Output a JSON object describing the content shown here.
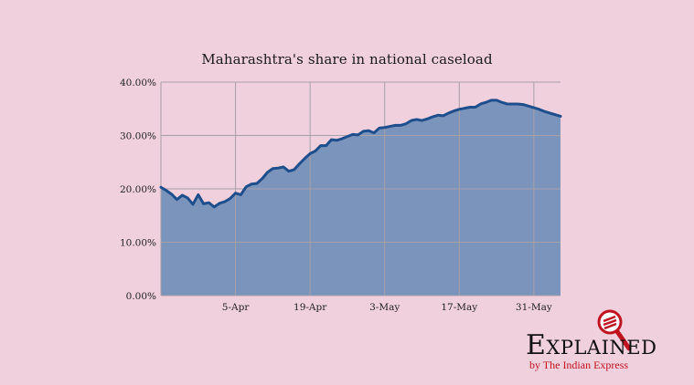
{
  "colors": {
    "background": "#EFD0DC",
    "area_fill": "#7A94BC",
    "line": "#1F4E8C",
    "grid": "#A8A0A8",
    "brand_red": "#C1121F"
  },
  "chart_data": {
    "type": "area",
    "title": "Maharashtra's share in national caseload",
    "xlabel": "",
    "ylabel": "",
    "x_tick_labels": [
      "5-Apr",
      "19-Apr",
      "3-May",
      "17-May",
      "31-May"
    ],
    "x_tick_index": [
      14,
      28,
      42,
      56,
      70
    ],
    "y_tick_labels": [
      "0.00%",
      "10.00%",
      "20.00%",
      "30.00%",
      "40.00%"
    ],
    "y_tick_values": [
      0,
      10,
      20,
      30,
      40
    ],
    "ylim": [
      0,
      40
    ],
    "x_range_index": [
      0,
      75
    ],
    "grid": true,
    "x": [
      "23-Mar",
      "24-Mar",
      "25-Mar",
      "26-Mar",
      "27-Mar",
      "28-Mar",
      "29-Mar",
      "30-Mar",
      "31-Mar",
      "1-Apr",
      "2-Apr",
      "3-Apr",
      "4-Apr",
      "5-Apr",
      "6-Apr",
      "7-Apr",
      "8-Apr",
      "9-Apr",
      "10-Apr",
      "11-Apr",
      "12-Apr",
      "13-Apr",
      "14-Apr",
      "15-Apr",
      "16-Apr",
      "17-Apr",
      "18-Apr",
      "19-Apr",
      "20-Apr",
      "21-Apr",
      "22-Apr",
      "23-Apr",
      "24-Apr",
      "25-Apr",
      "26-Apr",
      "27-Apr",
      "28-Apr",
      "29-Apr",
      "30-Apr",
      "1-May",
      "2-May",
      "3-May",
      "4-May",
      "5-May",
      "6-May",
      "7-May",
      "8-May",
      "9-May",
      "10-May",
      "11-May",
      "12-May",
      "13-May",
      "14-May",
      "15-May",
      "16-May",
      "17-May",
      "18-May",
      "19-May",
      "20-May",
      "21-May",
      "22-May",
      "23-May",
      "24-May",
      "25-May",
      "26-May",
      "27-May",
      "28-May",
      "29-May",
      "30-May",
      "31-May",
      "1-Jun",
      "2-Jun",
      "3-Jun",
      "4-Jun",
      "5-Jun",
      "6-Jun"
    ],
    "series": [
      {
        "values": [
          20.3,
          19.7,
          19.0,
          18.0,
          18.8,
          18.3,
          17.1,
          18.9,
          17.2,
          17.4,
          16.6,
          17.3,
          17.6,
          18.2,
          19.2,
          18.9,
          20.4,
          20.9,
          21.0,
          21.9,
          23.1,
          23.8,
          23.9,
          24.1,
          23.3,
          23.6,
          24.7,
          25.7,
          26.6,
          27.1,
          28.1,
          28.1,
          29.2,
          29.1,
          29.4,
          29.8,
          30.2,
          30.1,
          30.8,
          30.9,
          30.5,
          31.4,
          31.5,
          31.7,
          31.9,
          31.9,
          32.2,
          32.8,
          33.0,
          32.8,
          33.1,
          33.5,
          33.8,
          33.7,
          34.2,
          34.6,
          34.9,
          35.1,
          35.3,
          35.3,
          35.9,
          36.2,
          36.6,
          36.6,
          36.2,
          35.9,
          35.9,
          35.9,
          35.8,
          35.5,
          35.2,
          34.9,
          34.5,
          34.2,
          33.9,
          33.6
        ]
      }
    ]
  },
  "brand": {
    "word": "Explained",
    "sub": "by The Indian Express",
    "icon": "magnifier-icon"
  }
}
